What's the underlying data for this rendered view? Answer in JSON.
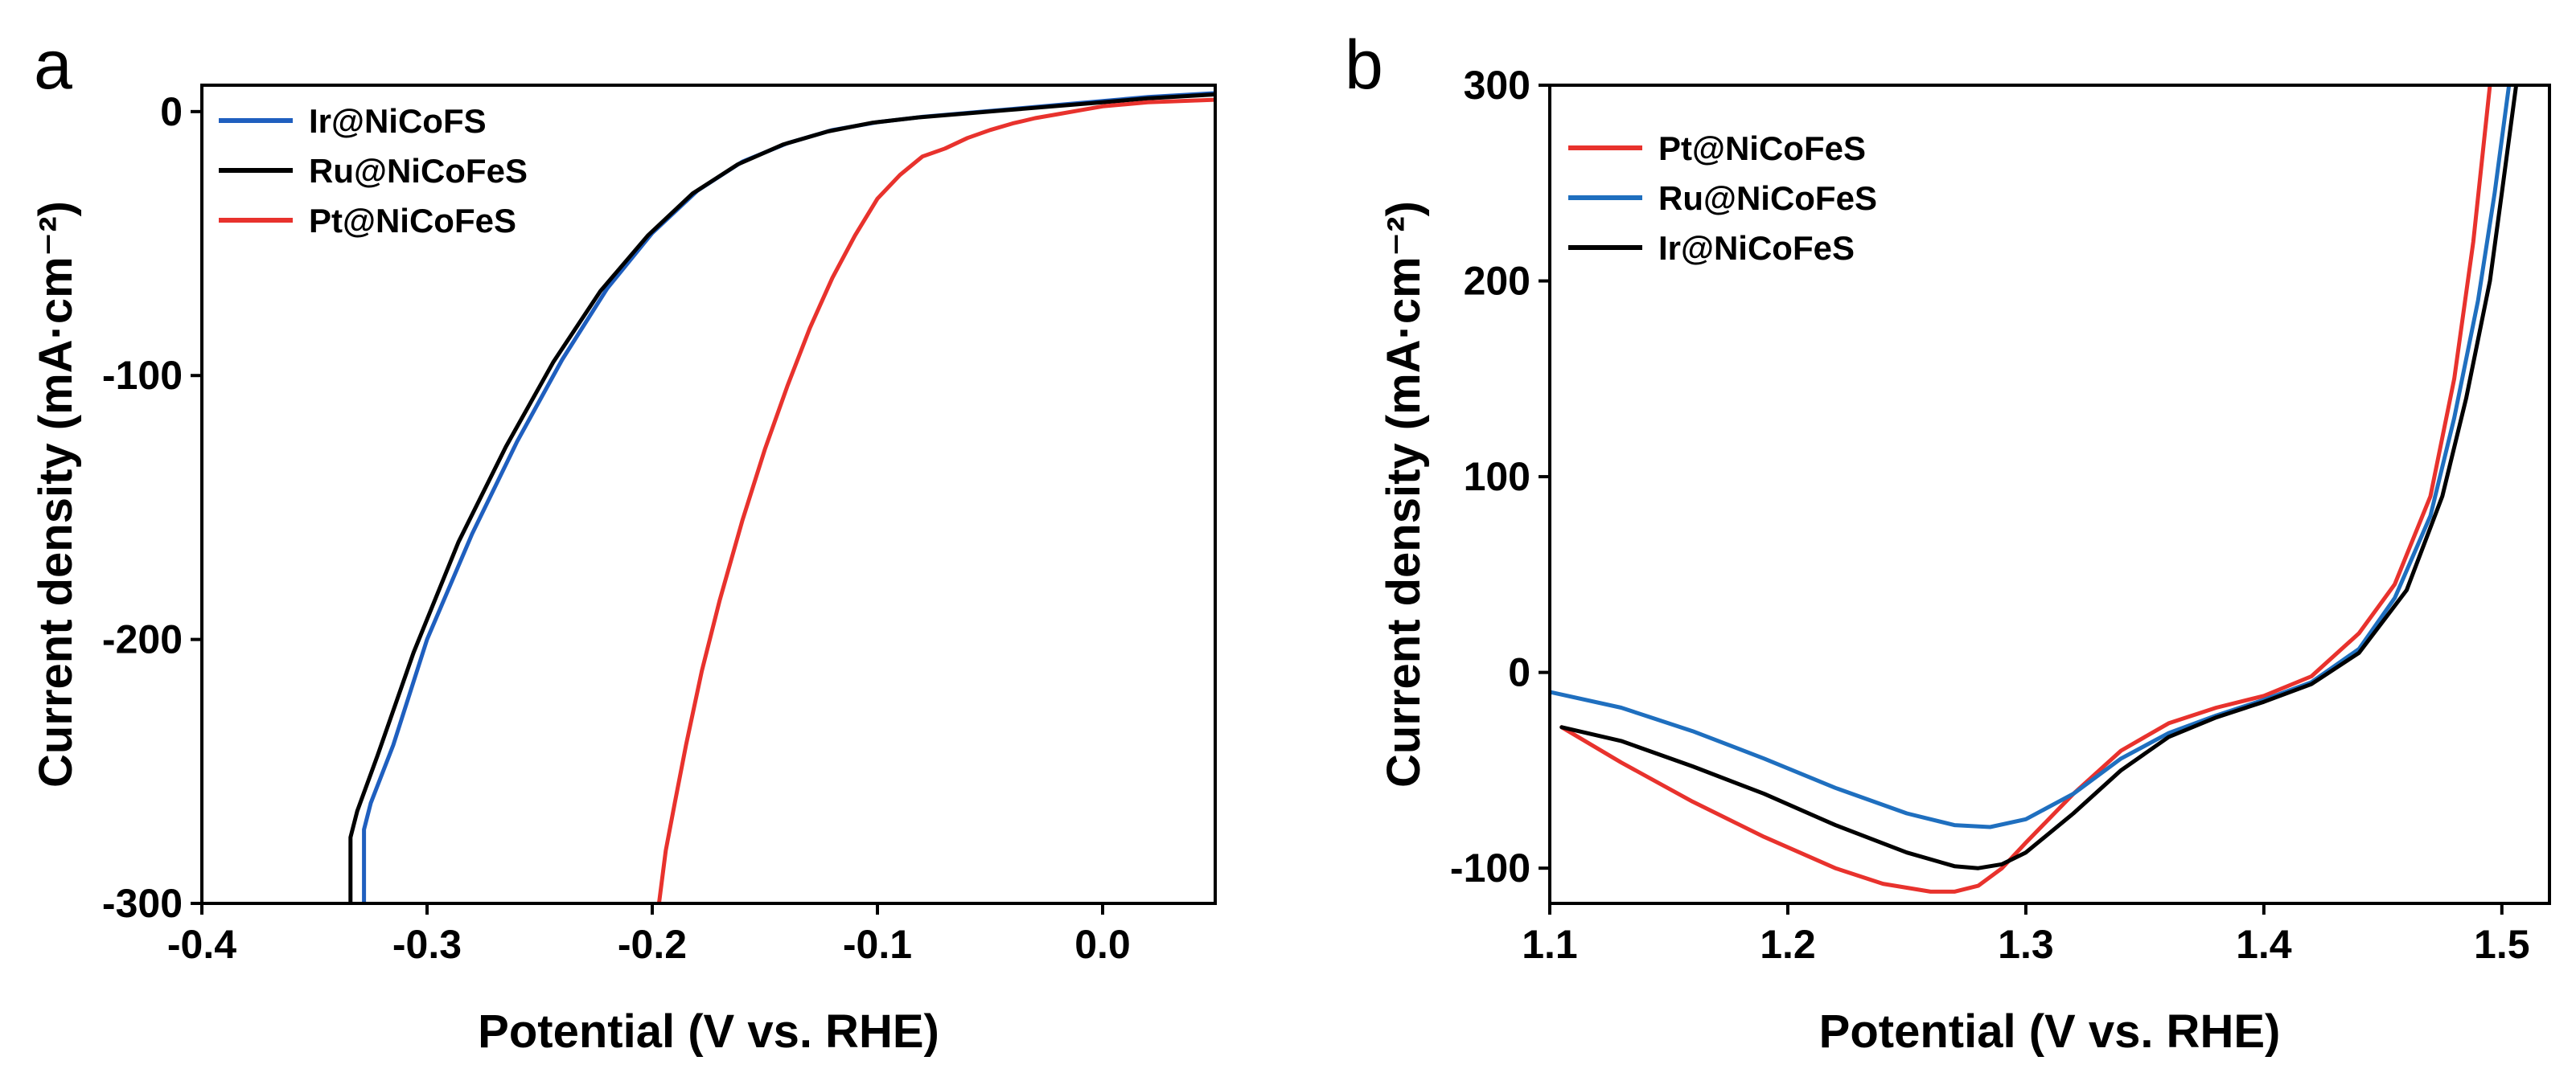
{
  "chart_data": [
    {
      "panel": "a",
      "type": "line",
      "xlabel": "Potential (V vs. RHE)",
      "ylabel": "Current density (mA·cm⁻²)",
      "xlim": [
        -0.4,
        0.05
      ],
      "ylim": [
        -300,
        10
      ],
      "xticks": [
        -0.4,
        -0.3,
        -0.2,
        -0.1,
        0.0
      ],
      "xtick_labels": [
        "-0.4",
        "-0.3",
        "-0.2",
        "-0.1",
        "0.0"
      ],
      "yticks": [
        0,
        -100,
        -200,
        -300
      ],
      "ytick_labels": [
        "0",
        "-100",
        "-200",
        "-300"
      ],
      "legend_position": "top-left",
      "series": [
        {
          "name": "Ir@NiCoFS",
          "color": "#1f5fbf",
          "x": [
            -0.328,
            -0.328,
            -0.325,
            -0.315,
            -0.3,
            -0.28,
            -0.26,
            -0.24,
            -0.22,
            -0.2,
            -0.18,
            -0.16,
            -0.14,
            -0.12,
            -0.1,
            -0.08,
            -0.06,
            -0.04,
            -0.02,
            0.0,
            0.02,
            0.05
          ],
          "y": [
            -300,
            -272,
            -262,
            -240,
            -200,
            -160,
            -125,
            -94,
            -67,
            -46,
            -30,
            -19,
            -12,
            -7,
            -4,
            -2,
            -0.5,
            1,
            2.5,
            4,
            5.5,
            7
          ]
        },
        {
          "name": "Ru@NiCoFeS",
          "color": "#000000",
          "x": [
            -0.334,
            -0.334,
            -0.331,
            -0.322,
            -0.306,
            -0.286,
            -0.265,
            -0.244,
            -0.223,
            -0.202,
            -0.182,
            -0.162,
            -0.142,
            -0.122,
            -0.102,
            -0.082,
            -0.062,
            -0.042,
            -0.022,
            0.0,
            0.02,
            0.05
          ],
          "y": [
            -300,
            -275,
            -265,
            -244,
            -205,
            -163,
            -127,
            -95,
            -68,
            -47,
            -31,
            -20,
            -12.5,
            -7.5,
            -4.2,
            -2.2,
            -0.8,
            0.6,
            2,
            3.5,
            5,
            6.5
          ]
        },
        {
          "name": "Pt@NiCoFeS",
          "color": "#e8322d",
          "x": [
            -0.197,
            -0.194,
            -0.19,
            -0.185,
            -0.178,
            -0.17,
            -0.16,
            -0.15,
            -0.14,
            -0.13,
            -0.12,
            -0.11,
            -0.1,
            -0.09,
            -0.08,
            -0.07,
            -0.06,
            -0.05,
            -0.04,
            -0.03,
            -0.02,
            -0.01,
            0.0,
            0.02,
            0.05
          ],
          "y": [
            -300,
            -280,
            -262,
            -240,
            -212,
            -185,
            -155,
            -128,
            -104,
            -82,
            -63,
            -47,
            -33,
            -24,
            -17,
            -14,
            -10,
            -7,
            -4.5,
            -2.5,
            -1,
            0.5,
            2,
            3.5,
            4.5
          ]
        }
      ]
    },
    {
      "panel": "b",
      "type": "line",
      "xlabel": "Potential (V vs. RHE)",
      "ylabel": "Current density (mA·cm⁻²)",
      "xlim": [
        1.1,
        1.52
      ],
      "ylim": [
        -118,
        300
      ],
      "xticks": [
        1.1,
        1.2,
        1.3,
        1.4,
        1.5
      ],
      "xtick_labels": [
        "1.1",
        "1.2",
        "1.3",
        "1.4",
        "1.5"
      ],
      "yticks": [
        -100,
        0,
        100,
        200,
        300
      ],
      "ytick_labels": [
        "-100",
        "0",
        "100",
        "200",
        "300"
      ],
      "legend_position": "top-left",
      "series": [
        {
          "name": "Pt@NiCoFeS",
          "color": "#e8322d",
          "x": [
            1.105,
            1.13,
            1.16,
            1.19,
            1.22,
            1.24,
            1.26,
            1.27,
            1.28,
            1.29,
            1.3,
            1.32,
            1.34,
            1.36,
            1.38,
            1.4,
            1.42,
            1.44,
            1.455,
            1.47,
            1.48,
            1.488,
            1.495
          ],
          "y": [
            -28,
            -46,
            -66,
            -84,
            -100,
            -108,
            -112,
            -112,
            -109,
            -100,
            -87,
            -62,
            -40,
            -26,
            -18,
            -12,
            -2,
            20,
            45,
            90,
            150,
            220,
            300
          ]
        },
        {
          "name": "Ru@NiCoFeS",
          "color": "#1f6fbf",
          "x": [
            1.1,
            1.13,
            1.16,
            1.19,
            1.22,
            1.25,
            1.27,
            1.285,
            1.3,
            1.32,
            1.34,
            1.36,
            1.38,
            1.4,
            1.42,
            1.44,
            1.455,
            1.47,
            1.48,
            1.49,
            1.497,
            1.503
          ],
          "y": [
            -10,
            -18,
            -30,
            -44,
            -59,
            -72,
            -78,
            -79,
            -75,
            -62,
            -44,
            -31,
            -22,
            -14,
            -5,
            12,
            38,
            80,
            130,
            190,
            245,
            300
          ]
        },
        {
          "name": "Ir@NiCoFeS",
          "color": "#000000",
          "x": [
            1.105,
            1.13,
            1.16,
            1.19,
            1.22,
            1.25,
            1.27,
            1.28,
            1.29,
            1.3,
            1.32,
            1.34,
            1.36,
            1.38,
            1.4,
            1.42,
            1.44,
            1.46,
            1.475,
            1.485,
            1.495,
            1.5,
            1.506
          ],
          "y": [
            -28,
            -35,
            -48,
            -62,
            -78,
            -92,
            -99,
            -100,
            -98,
            -92,
            -72,
            -50,
            -33,
            -23,
            -15,
            -6,
            10,
            42,
            90,
            140,
            200,
            245,
            300
          ]
        }
      ]
    }
  ]
}
